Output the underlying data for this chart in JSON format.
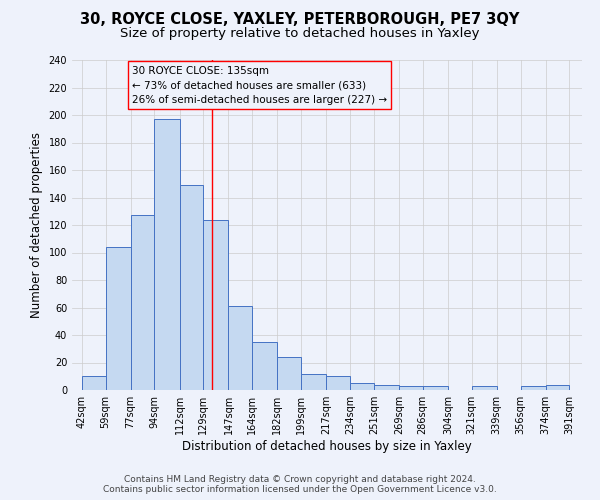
{
  "title1": "30, ROYCE CLOSE, YAXLEY, PETERBOROUGH, PE7 3QY",
  "title2": "Size of property relative to detached houses in Yaxley",
  "xlabel": "Distribution of detached houses by size in Yaxley",
  "ylabel": "Number of detached properties",
  "bar_left_edges": [
    42,
    59,
    77,
    94,
    112,
    129,
    147,
    164,
    182,
    199,
    217,
    234,
    251,
    269,
    286,
    304,
    321,
    339,
    356,
    374
  ],
  "bar_widths": [
    17,
    18,
    17,
    18,
    17,
    18,
    17,
    18,
    17,
    18,
    17,
    17,
    18,
    17,
    18,
    17,
    18,
    17,
    18,
    17
  ],
  "bar_heights": [
    10,
    104,
    127,
    197,
    149,
    124,
    61,
    35,
    24,
    12,
    10,
    5,
    4,
    3,
    3,
    0,
    3,
    0,
    3,
    4
  ],
  "bar_color": "#c5d9f1",
  "bar_edge_color": "#4472c4",
  "xtick_labels": [
    "42sqm",
    "59sqm",
    "77sqm",
    "94sqm",
    "112sqm",
    "129sqm",
    "147sqm",
    "164sqm",
    "182sqm",
    "199sqm",
    "217sqm",
    "234sqm",
    "251sqm",
    "269sqm",
    "286sqm",
    "304sqm",
    "321sqm",
    "339sqm",
    "356sqm",
    "374sqm",
    "391sqm"
  ],
  "xtick_positions": [
    42,
    59,
    77,
    94,
    112,
    129,
    147,
    164,
    182,
    199,
    217,
    234,
    251,
    269,
    286,
    304,
    321,
    339,
    356,
    374,
    391
  ],
  "ylim": [
    0,
    240
  ],
  "xlim": [
    35,
    400
  ],
  "red_line_x": 135,
  "annotation_title": "30 ROYCE CLOSE: 135sqm",
  "annotation_line1": "← 73% of detached houses are smaller (633)",
  "annotation_line2": "26% of semi-detached houses are larger (227) →",
  "footer1": "Contains HM Land Registry data © Crown copyright and database right 2024.",
  "footer2": "Contains public sector information licensed under the Open Government Licence v3.0.",
  "background_color": "#eef2fb",
  "grid_color": "#cccccc",
  "title_fontsize": 10.5,
  "subtitle_fontsize": 9.5,
  "axis_label_fontsize": 8.5,
  "tick_fontsize": 7,
  "annotation_fontsize": 7.5,
  "footer_fontsize": 6.5
}
